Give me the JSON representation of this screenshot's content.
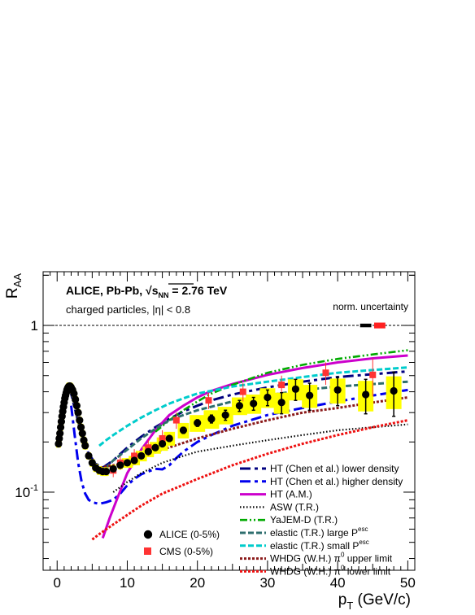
{
  "chart_data": {
    "type": "line",
    "y_scale": "log",
    "xlim": [
      -2,
      51
    ],
    "ylim": [
      0.034,
      2.1
    ],
    "grid": false,
    "xlabel": "p",
    "xlabel_sub": "T",
    "xlabel_unit": " (GeV/c)",
    "ylabel": "R",
    "ylabel_sub": "AA",
    "x_ticks": [
      "0",
      "10",
      "20",
      "30",
      "40",
      "50"
    ],
    "y_ticks": [
      {
        "value": 1,
        "base": "1",
        "exp": ""
      },
      {
        "value": 0.1,
        "base": "10",
        "exp": "-1"
      }
    ],
    "annotations": {
      "title_prefix": "ALICE, Pb-Pb, ",
      "sqrt_s": "s",
      "sqrt_sub": "NN",
      "title_suffix": " = 2.76 TeV",
      "subtitle": "charged particles, |η| < 0.8",
      "norm_uncertainty": "norm. uncertainty"
    },
    "reference_line": 1,
    "norm_boxes": [
      {
        "color": "#000000",
        "x": [
          43.2,
          44.8
        ],
        "y": [
          0.975,
          1.025
        ]
      },
      {
        "color": "#ff2020",
        "x": [
          45.2,
          46.8
        ],
        "y": [
          0.96,
          1.04
        ]
      }
    ],
    "theory_curves": [
      {
        "name": "HT (Chen et al.) lower density",
        "color": "#000080",
        "dash": "13,5,4,5",
        "width": 3,
        "x": [
          1.8,
          2.5,
          3.5,
          4.5,
          5.5,
          6.5,
          8,
          10,
          12,
          14,
          16,
          18,
          20,
          22,
          25,
          30,
          35,
          40,
          45,
          50
        ],
        "y": [
          0.42,
          0.32,
          0.22,
          0.17,
          0.148,
          0.14,
          0.155,
          0.185,
          0.215,
          0.245,
          0.275,
          0.305,
          0.33,
          0.355,
          0.385,
          0.425,
          0.46,
          0.49,
          0.51,
          0.53
        ]
      },
      {
        "name": "HT (Chen et al.) higher density",
        "color": "#0000ee",
        "dash": "13,5,4,5",
        "width": 3,
        "x": [
          2,
          2.5,
          3,
          3.5,
          4,
          4.5,
          5,
          5.5,
          6,
          7,
          8,
          9,
          10,
          11,
          12,
          13,
          14,
          15,
          16,
          17,
          18,
          20,
          22,
          25,
          30,
          35,
          40,
          45,
          50
        ],
        "y": [
          0.33,
          0.22,
          0.15,
          0.115,
          0.098,
          0.09,
          0.087,
          0.086,
          0.085,
          0.087,
          0.09,
          0.098,
          0.11,
          0.12,
          0.128,
          0.133,
          0.138,
          0.137,
          0.145,
          0.16,
          0.175,
          0.2,
          0.22,
          0.25,
          0.29,
          0.32,
          0.35,
          0.38,
          0.41
        ]
      },
      {
        "name": "HT (A.M.)",
        "color": "#cc00cc",
        "dash": "",
        "width": 3,
        "x": [
          6.5,
          7.5,
          8.5,
          10,
          12,
          14,
          16,
          18,
          20,
          22,
          25,
          30,
          35,
          40,
          45,
          50
        ],
        "y": [
          0.053,
          0.07,
          0.09,
          0.13,
          0.18,
          0.235,
          0.29,
          0.33,
          0.37,
          0.405,
          0.445,
          0.505,
          0.555,
          0.6,
          0.635,
          0.66
        ]
      },
      {
        "name": "ASW (T.R.)",
        "color": "#000000",
        "dash": "1.5,2.5",
        "width": 2.2,
        "x": [
          8,
          10,
          12,
          15,
          18,
          20,
          25,
          30,
          35,
          40,
          45,
          50
        ],
        "y": [
          0.1,
          0.115,
          0.13,
          0.15,
          0.165,
          0.175,
          0.19,
          0.205,
          0.22,
          0.235,
          0.245,
          0.255
        ]
      },
      {
        "name": "YaJEM-D (T.R.)",
        "color": "#00aa00",
        "dash": "9,3,2,3,2,3",
        "width": 2.6,
        "x": [
          14,
          16,
          18,
          20,
          22,
          25,
          30,
          35,
          40,
          45,
          50
        ],
        "y": [
          0.23,
          0.27,
          0.31,
          0.35,
          0.39,
          0.44,
          0.52,
          0.58,
          0.63,
          0.67,
          0.71
        ]
      },
      {
        "name": "elastic (T.R.) large P",
        "sup": "esc",
        "color": "#2e6e6e",
        "dash": "7,3",
        "width": 3,
        "x": [
          6,
          7,
          8,
          10,
          12,
          14,
          16,
          18,
          20,
          25,
          30,
          35,
          40,
          45,
          50
        ],
        "y": [
          0.13,
          0.14,
          0.155,
          0.18,
          0.21,
          0.24,
          0.27,
          0.29,
          0.31,
          0.35,
          0.38,
          0.41,
          0.43,
          0.445,
          0.46
        ]
      },
      {
        "name": "elastic (T.R.) small P",
        "sup": "esc",
        "color": "#00cccc",
        "dash": "7,3",
        "width": 3,
        "x": [
          6,
          7,
          8,
          10,
          12,
          14,
          16,
          18,
          20,
          25,
          30,
          35,
          40,
          45,
          50
        ],
        "y": [
          0.19,
          0.205,
          0.22,
          0.25,
          0.28,
          0.31,
          0.34,
          0.365,
          0.39,
          0.43,
          0.46,
          0.49,
          0.52,
          0.54,
          0.56
        ]
      },
      {
        "name": "WHDG (W.H.) π",
        "sup": "0",
        "suffix": " upper limit",
        "color": "#8b1a1a",
        "dash": "3,2",
        "width": 3,
        "x": [
          5,
          6,
          8,
          10,
          12,
          15,
          20,
          25,
          30,
          35,
          40,
          45,
          50
        ],
        "y": [
          0.14,
          0.14,
          0.145,
          0.15,
          0.16,
          0.18,
          0.21,
          0.24,
          0.27,
          0.3,
          0.32,
          0.345,
          0.37
        ]
      },
      {
        "name": "WHDG (W.H.) π",
        "sup": "0",
        "suffix": " lower limit",
        "color": "#ee1111",
        "dash": "3,2",
        "width": 3,
        "x": [
          5,
          6,
          8,
          10,
          12,
          15,
          20,
          25,
          30,
          35,
          40,
          45,
          50
        ],
        "y": [
          0.052,
          0.056,
          0.064,
          0.073,
          0.083,
          0.098,
          0.12,
          0.145,
          0.17,
          0.195,
          0.22,
          0.245,
          0.27
        ]
      }
    ],
    "cms": {
      "name": "CMS (0-5%)",
      "color": "#ff3333",
      "x": [
        8,
        9,
        11,
        13,
        15,
        17,
        21.6,
        26.5,
        32,
        38.3,
        45
      ],
      "y": [
        0.135,
        0.15,
        0.165,
        0.185,
        0.21,
        0.27,
        0.355,
        0.4,
        0.44,
        0.52,
        0.505
      ],
      "err": [
        0.012,
        0.014,
        0.016,
        0.02,
        0.025,
        0.03,
        0.04,
        0.05,
        0.06,
        0.08,
        0.13
      ]
    },
    "alice": {
      "name": "ALICE (0-5%)",
      "x": [
        0.2,
        0.3,
        0.4,
        0.5,
        0.6,
        0.7,
        0.8,
        0.9,
        1.0,
        1.1,
        1.2,
        1.3,
        1.4,
        1.5,
        1.6,
        1.7,
        1.8,
        1.9,
        2.0,
        2.2,
        2.4,
        2.6,
        2.8,
        3.0,
        3.2,
        3.4,
        3.6,
        3.8,
        4.0,
        4.5,
        5.0,
        5.5,
        6.0,
        6.5,
        7.0,
        8.0,
        9.0,
        10.0,
        11.0,
        12.0,
        13.0,
        14.0,
        15.0,
        16.0,
        18.0,
        20.0,
        22.0,
        24.0,
        26.0,
        28.0,
        30.0,
        32.0,
        34.0,
        36.0,
        40.0,
        44.0,
        48.0
      ],
      "y": [
        0.195,
        0.21,
        0.225,
        0.245,
        0.265,
        0.285,
        0.305,
        0.325,
        0.345,
        0.365,
        0.38,
        0.395,
        0.41,
        0.42,
        0.428,
        0.432,
        0.433,
        0.43,
        0.425,
        0.41,
        0.39,
        0.36,
        0.33,
        0.3,
        0.27,
        0.245,
        0.225,
        0.205,
        0.19,
        0.165,
        0.15,
        0.14,
        0.135,
        0.133,
        0.133,
        0.138,
        0.145,
        0.15,
        0.155,
        0.165,
        0.175,
        0.185,
        0.195,
        0.21,
        0.235,
        0.26,
        0.275,
        0.29,
        0.33,
        0.34,
        0.37,
        0.345,
        0.415,
        0.38,
        0.41,
        0.385,
        0.405
      ],
      "stat_err": [
        0,
        0,
        0,
        0,
        0,
        0,
        0,
        0,
        0,
        0,
        0,
        0,
        0,
        0,
        0,
        0,
        0,
        0,
        0,
        0,
        0,
        0,
        0,
        0,
        0,
        0,
        0,
        0,
        0,
        0,
        0,
        0,
        0,
        0,
        0,
        0,
        0,
        0,
        0,
        0,
        0,
        0,
        0,
        0,
        0.01,
        0.012,
        0.015,
        0.02,
        0.025,
        0.03,
        0.04,
        0.05,
        0.06,
        0.07,
        0.08,
        0.09,
        0.12
      ],
      "sys_err": [
        0.01,
        0.01,
        0.01,
        0.012,
        0.012,
        0.013,
        0.014,
        0.015,
        0.016,
        0.017,
        0.018,
        0.02,
        0.02,
        0.02,
        0.021,
        0.022,
        0.022,
        0.021,
        0.021,
        0.02,
        0.019,
        0.017,
        0.016,
        0.014,
        0.013,
        0.012,
        0.011,
        0.01,
        0.01,
        0.008,
        0.008,
        0.008,
        0.008,
        0.008,
        0.008,
        0.008,
        0.008,
        0.01,
        0.01,
        0.012,
        0.013,
        0.015,
        0.018,
        0.02,
        0.025,
        0.03,
        0.035,
        0.035,
        0.04,
        0.045,
        0.05,
        0.05,
        0.06,
        0.06,
        0.07,
        0.08,
        0.09
      ],
      "sys_color": "#ffff00"
    }
  }
}
